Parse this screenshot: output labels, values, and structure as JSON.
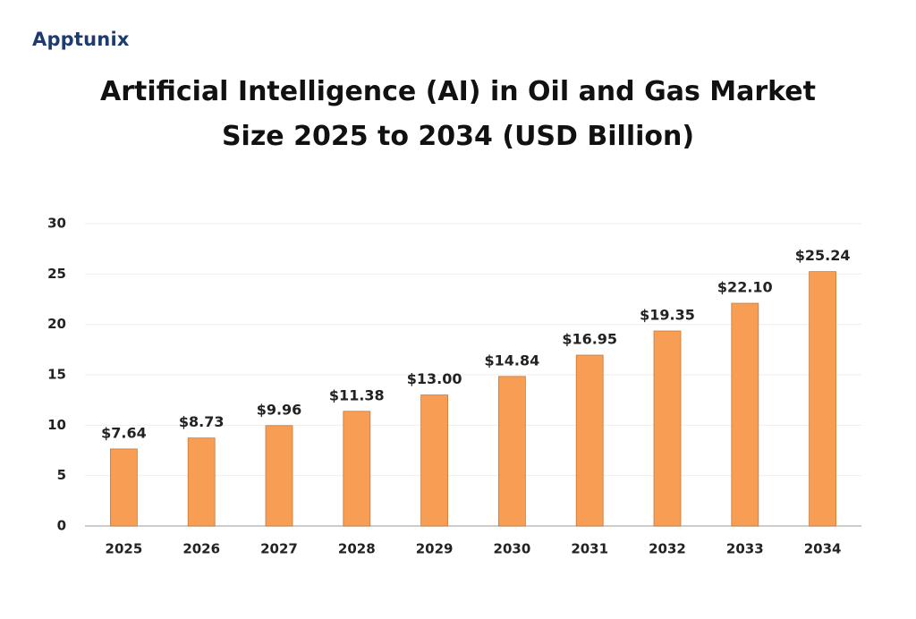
{
  "logo": "Apptunix",
  "chart_data": {
    "type": "bar",
    "title": "Artificial Intelligence (AI) in Oil and Gas Market Size 2025 to 2034 (USD Billion)",
    "categories": [
      "2025",
      "2026",
      "2027",
      "2028",
      "2029",
      "2030",
      "2031",
      "2032",
      "2033",
      "2034"
    ],
    "values": [
      7.64,
      8.73,
      9.96,
      11.38,
      13.0,
      14.84,
      16.95,
      19.35,
      22.1,
      25.24
    ],
    "value_labels": [
      "$7.64",
      "$8.73",
      "$9.96",
      "$11.38",
      "$13.00",
      "$14.84",
      "$16.95",
      "$19.35",
      "$22.10",
      "$25.24"
    ],
    "color": "#f79d54",
    "ylim": [
      0,
      30
    ],
    "yticks": [
      0,
      5,
      10,
      15,
      20,
      25,
      30
    ],
    "grid": true
  }
}
